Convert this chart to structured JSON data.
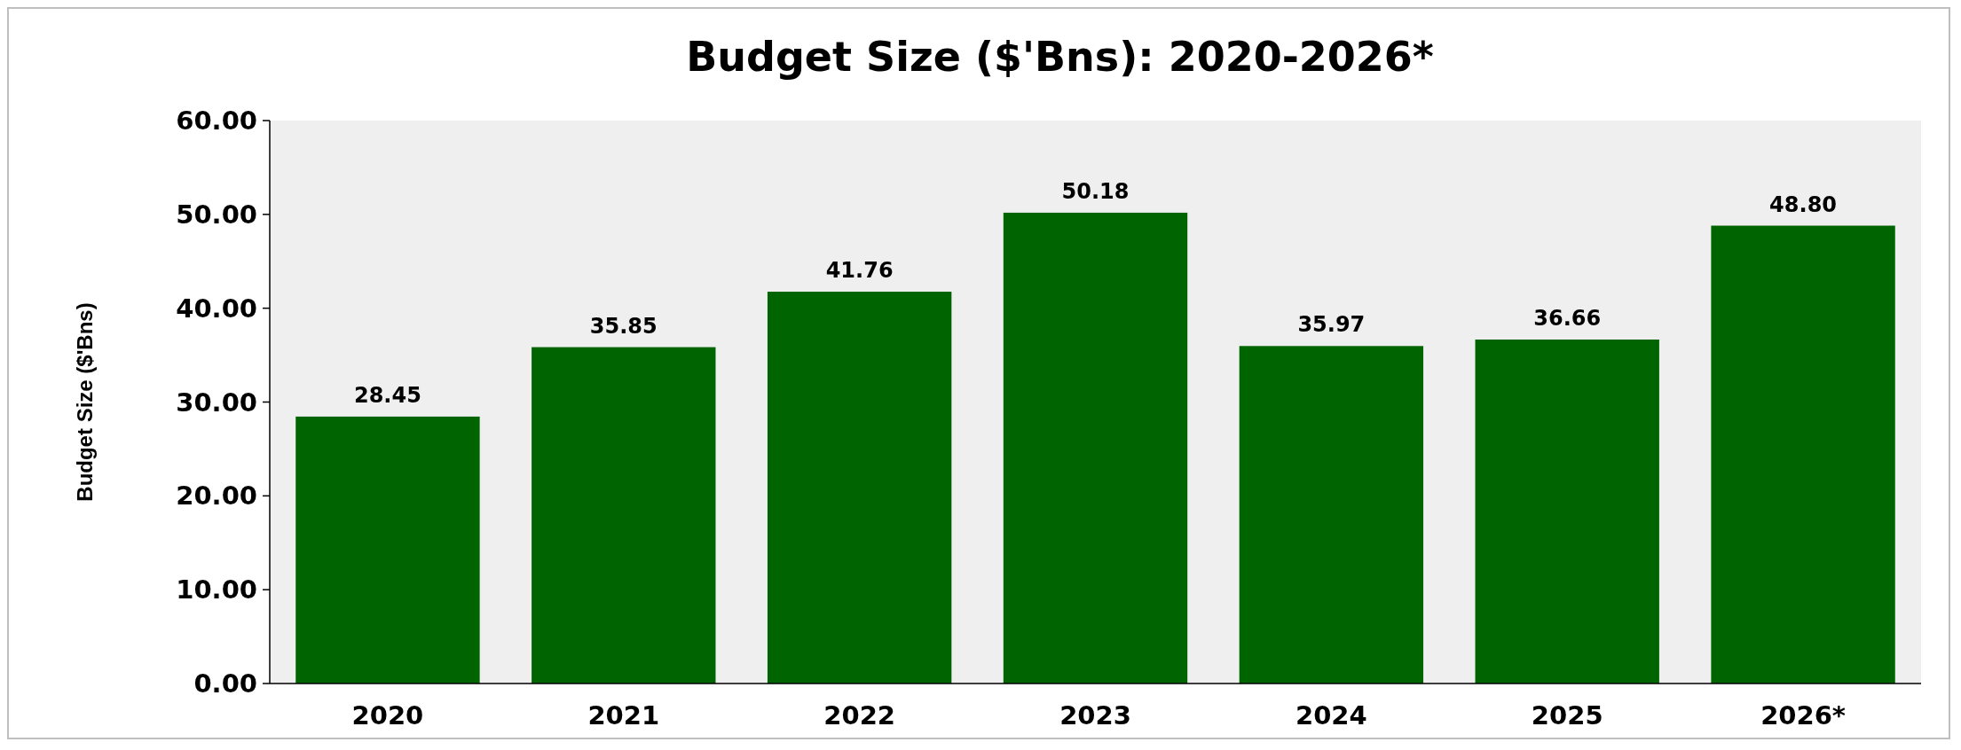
{
  "chart_data": {
    "type": "bar",
    "title": "Budget Size ($'Bns): 2020-2026*",
    "ylabel": "Budget Size ($'Bns)",
    "categories": [
      "2020",
      "2021",
      "2022",
      "2023",
      "2024",
      "2025",
      "2026*"
    ],
    "values": [
      28.45,
      35.85,
      41.76,
      50.18,
      35.97,
      36.66,
      48.8
    ],
    "value_labels": [
      "28.45",
      "35.85",
      "41.76",
      "50.18",
      "35.97",
      "36.66",
      "48.80"
    ],
    "color": "#006400",
    "ylim": [
      0,
      60
    ],
    "yticks": [
      {
        "value": 0,
        "label": "0.00"
      },
      {
        "value": 10,
        "label": "10.00"
      },
      {
        "value": 20,
        "label": "20.00"
      },
      {
        "value": 30,
        "label": "30.00"
      },
      {
        "value": 40,
        "label": "40.00"
      },
      {
        "value": 50,
        "label": "50.00"
      },
      {
        "value": 60,
        "label": "60.00"
      }
    ],
    "grid": false
  }
}
